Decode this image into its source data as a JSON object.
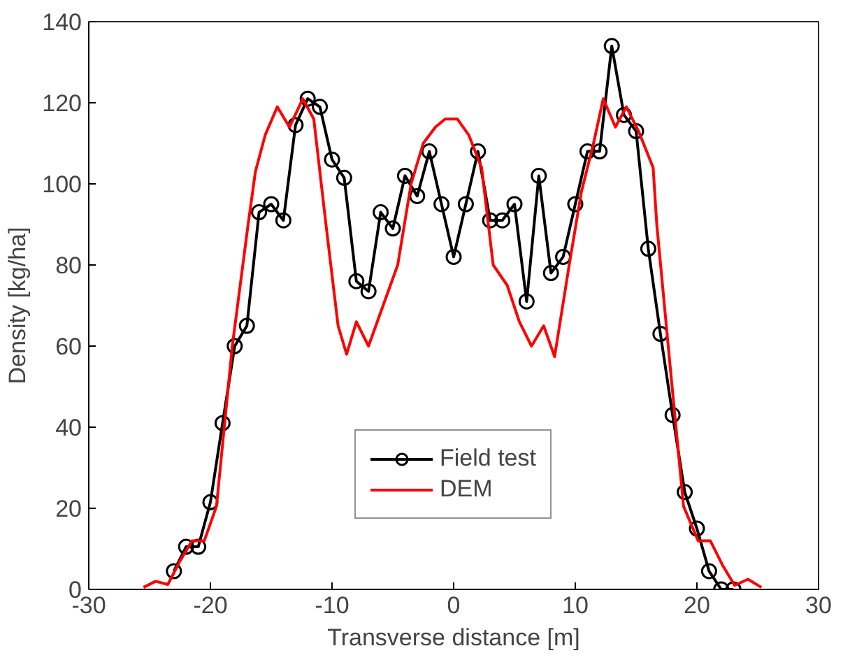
{
  "chart_data": {
    "type": "line",
    "xlabel": "Transverse distance [m]",
    "ylabel": "Density [kg/ha]",
    "xlim": [
      -30,
      30
    ],
    "ylim": [
      0,
      140
    ],
    "xticks": [
      -30,
      -20,
      -10,
      0,
      10,
      20,
      30
    ],
    "yticks": [
      0,
      20,
      40,
      60,
      80,
      100,
      120,
      140
    ],
    "grid": false,
    "legend": "bottom",
    "line_style": "solid",
    "series": [
      {
        "name": "Field test",
        "color": "#000000",
        "marker": "circle",
        "x": [
          -23,
          -22,
          -21,
          -20,
          -19,
          -18,
          -17,
          -16,
          -15,
          -14,
          -13,
          -12,
          -11,
          -10,
          -9,
          -8,
          -7,
          -6,
          -5,
          -4,
          -3,
          -2,
          -1,
          0,
          1,
          2,
          3,
          4,
          5,
          6,
          7,
          8,
          9,
          10,
          11,
          12,
          13,
          14,
          15,
          16,
          17,
          18,
          19,
          20,
          21,
          22,
          23
        ],
        "values": [
          4.5,
          10.5,
          10.5,
          21.5,
          41,
          60,
          65,
          93,
          95,
          91,
          114.5,
          121,
          119,
          106,
          101.5,
          76,
          73.5,
          93,
          89,
          102,
          97,
          108,
          95,
          82,
          95,
          108,
          91,
          91,
          95,
          71,
          102,
          78,
          82,
          95,
          108,
          108,
          134,
          117,
          113,
          84,
          63,
          43,
          24,
          15,
          4.5,
          0,
          0
        ]
      },
      {
        "name": "DEM",
        "color": "#ff0000",
        "marker": "none",
        "x": [
          -25.5,
          -24.5,
          -23.5,
          -22.5,
          -21.5,
          -20.5,
          -19.5,
          -18.2,
          -16.9,
          -16.3,
          -15.5,
          -14.5,
          -13.5,
          -12.4,
          -11.5,
          -10.5,
          -9.5,
          -8.8,
          -8,
          -7,
          -5.8,
          -4.6,
          -3.5,
          -2.5,
          -1.5,
          -0.7,
          0.3,
          1.25,
          2.3,
          3.25,
          4.4,
          5.4,
          6.4,
          7.4,
          8.3,
          9.5,
          10.5,
          11.5,
          12.3,
          13.3,
          14.2,
          15.2,
          16.4,
          16.7,
          17.8,
          18.9,
          20.1,
          21.1,
          22.1,
          23.1,
          24.2,
          25.3
        ],
        "values": [
          0.5,
          2,
          1.2,
          7,
          12,
          12,
          20.5,
          60,
          90,
          103,
          112,
          119,
          114,
          121,
          116,
          90,
          65,
          58,
          66,
          60,
          70,
          80,
          100,
          110,
          114,
          116,
          116,
          112,
          104,
          80,
          75,
          66,
          60,
          65,
          57.4,
          80,
          98,
          110,
          121,
          114,
          119,
          113,
          104,
          90,
          55,
          20.5,
          12,
          12,
          6,
          1,
          2.5,
          0.5
        ]
      }
    ]
  }
}
